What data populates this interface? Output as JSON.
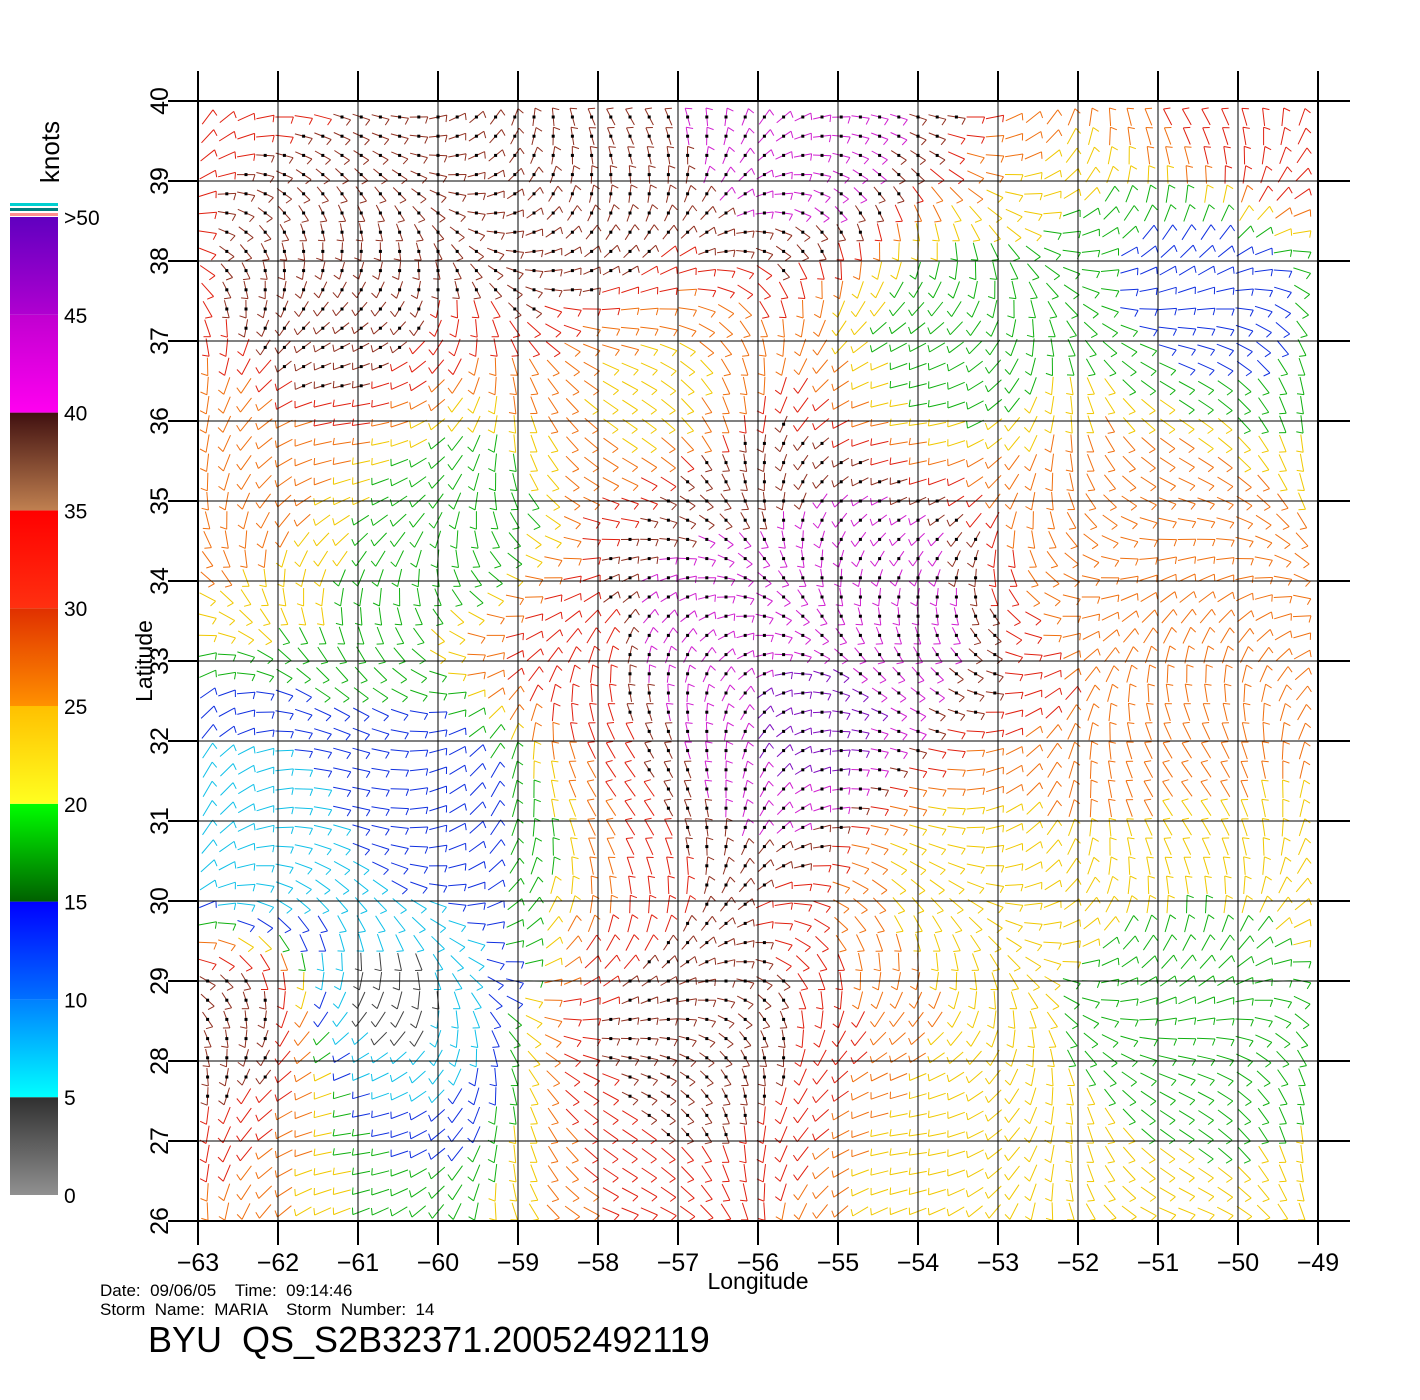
{
  "chart_data": {
    "type": "scatter",
    "plot_kind": "wind barb field",
    "xlabel": "Longitude",
    "ylabel": "Latitude",
    "xlim": [
      -63,
      -49
    ],
    "ylim": [
      26,
      40
    ],
    "x_ticks": [
      -63,
      -62,
      -61,
      -60,
      -59,
      -58,
      -57,
      -56,
      -55,
      -54,
      -53,
      -52,
      -51,
      -50,
      -49
    ],
    "y_ticks": [
      26,
      27,
      28,
      29,
      30,
      31,
      32,
      33,
      34,
      35,
      36,
      37,
      38,
      39,
      40
    ],
    "x_tick_labels": [
      "−63",
      "−62",
      "−61",
      "−60",
      "−59",
      "−58",
      "−57",
      "−56",
      "−55",
      "−54",
      "−53",
      "−52",
      "−51",
      "−50",
      "−49"
    ],
    "y_tick_labels": [
      "26",
      "27",
      "28",
      "29",
      "30",
      "31",
      "32",
      "33",
      "34",
      "35",
      "36",
      "37",
      "38",
      "39",
      "40"
    ],
    "grid": true,
    "colorbar": {
      "unit_label": "knots",
      "tick_labels": [
        ">50",
        "45",
        "40",
        "35",
        "30",
        "25",
        "20",
        "15",
        "10",
        "5",
        "0"
      ],
      "tick_values": [
        50,
        45,
        40,
        35,
        30,
        25,
        20,
        15,
        10,
        5,
        0
      ],
      "bands": [
        {
          "from": 0,
          "to": 5,
          "top": "#303030",
          "bottom": "#909090"
        },
        {
          "from": 5,
          "to": 10,
          "top": "#0080ff",
          "bottom": "#00ffff"
        },
        {
          "from": 10,
          "to": 15,
          "top": "#0000ff",
          "bottom": "#0070ff"
        },
        {
          "from": 15,
          "to": 20,
          "top": "#00ff00",
          "bottom": "#006000"
        },
        {
          "from": 20,
          "to": 25,
          "top": "#ffc000",
          "bottom": "#ffff20"
        },
        {
          "from": 25,
          "to": 30,
          "top": "#e03000",
          "bottom": "#ff9000"
        },
        {
          "from": 30,
          "to": 35,
          "top": "#ff0000",
          "bottom": "#ff3010"
        },
        {
          "from": 35,
          "to": 40,
          "top": "#401010",
          "bottom": "#c08050"
        },
        {
          "from": 40,
          "to": 45,
          "top": "#c000d0",
          "bottom": "#ff00f0"
        },
        {
          "from": 45,
          "to": 50,
          "top": "#6000c0",
          "bottom": "#b000d0"
        }
      ],
      "top_stripes": [
        "#ff9090",
        "#008080",
        "#00d0d0"
      ]
    },
    "wind_speed_regions_knots": [
      {
        "lon": -56.8,
        "lat": 33.4,
        "speed": 44
      },
      {
        "lon": -55.2,
        "lat": 32.3,
        "speed": 46
      },
      {
        "lon": -54.8,
        "lat": 33.9,
        "speed": 43
      },
      {
        "lon": -56.3,
        "lat": 34.9,
        "speed": 40
      },
      {
        "lon": -61.5,
        "lat": 37.2,
        "speed": 37
      },
      {
        "lon": -58.5,
        "lat": 38.5,
        "speed": 37
      },
      {
        "lon": -55.5,
        "lat": 39.5,
        "speed": 42
      },
      {
        "lon": -56.8,
        "lat": 28.4,
        "speed": 36
      },
      {
        "lon": -58.5,
        "lat": 33.0,
        "speed": 31
      },
      {
        "lon": -62.4,
        "lat": 28.5,
        "speed": 37
      },
      {
        "lon": -60.8,
        "lat": 28.8,
        "speed": 4
      },
      {
        "lon": -62.2,
        "lat": 30.6,
        "speed": 7
      },
      {
        "lon": -60.0,
        "lat": 31.5,
        "speed": 13
      },
      {
        "lon": -50.3,
        "lat": 37.8,
        "speed": 13
      },
      {
        "lon": -53.5,
        "lat": 37.0,
        "speed": 18
      },
      {
        "lon": -59.8,
        "lat": 34.6,
        "speed": 16
      },
      {
        "lon": -51.5,
        "lat": 34.5,
        "speed": 28
      },
      {
        "lon": -51.0,
        "lat": 28.5,
        "speed": 19
      },
      {
        "lon": -53.5,
        "lat": 30.5,
        "speed": 24
      },
      {
        "lon": -57.2,
        "lat": 36.2,
        "speed": 24
      },
      {
        "lon": -62.6,
        "lat": 35.5,
        "speed": 26
      },
      {
        "lon": -49.5,
        "lat": 39.6,
        "speed": 35
      },
      {
        "lon": -52.8,
        "lat": 26.2,
        "speed": 22
      }
    ]
  },
  "footer": {
    "line1": "Date:  09/06/05    Time:  09:14:46",
    "line2": "Storm  Name:  MARIA    Storm  Number:  14",
    "file_id": "BYU  QS_S2B32371.20052492119"
  }
}
